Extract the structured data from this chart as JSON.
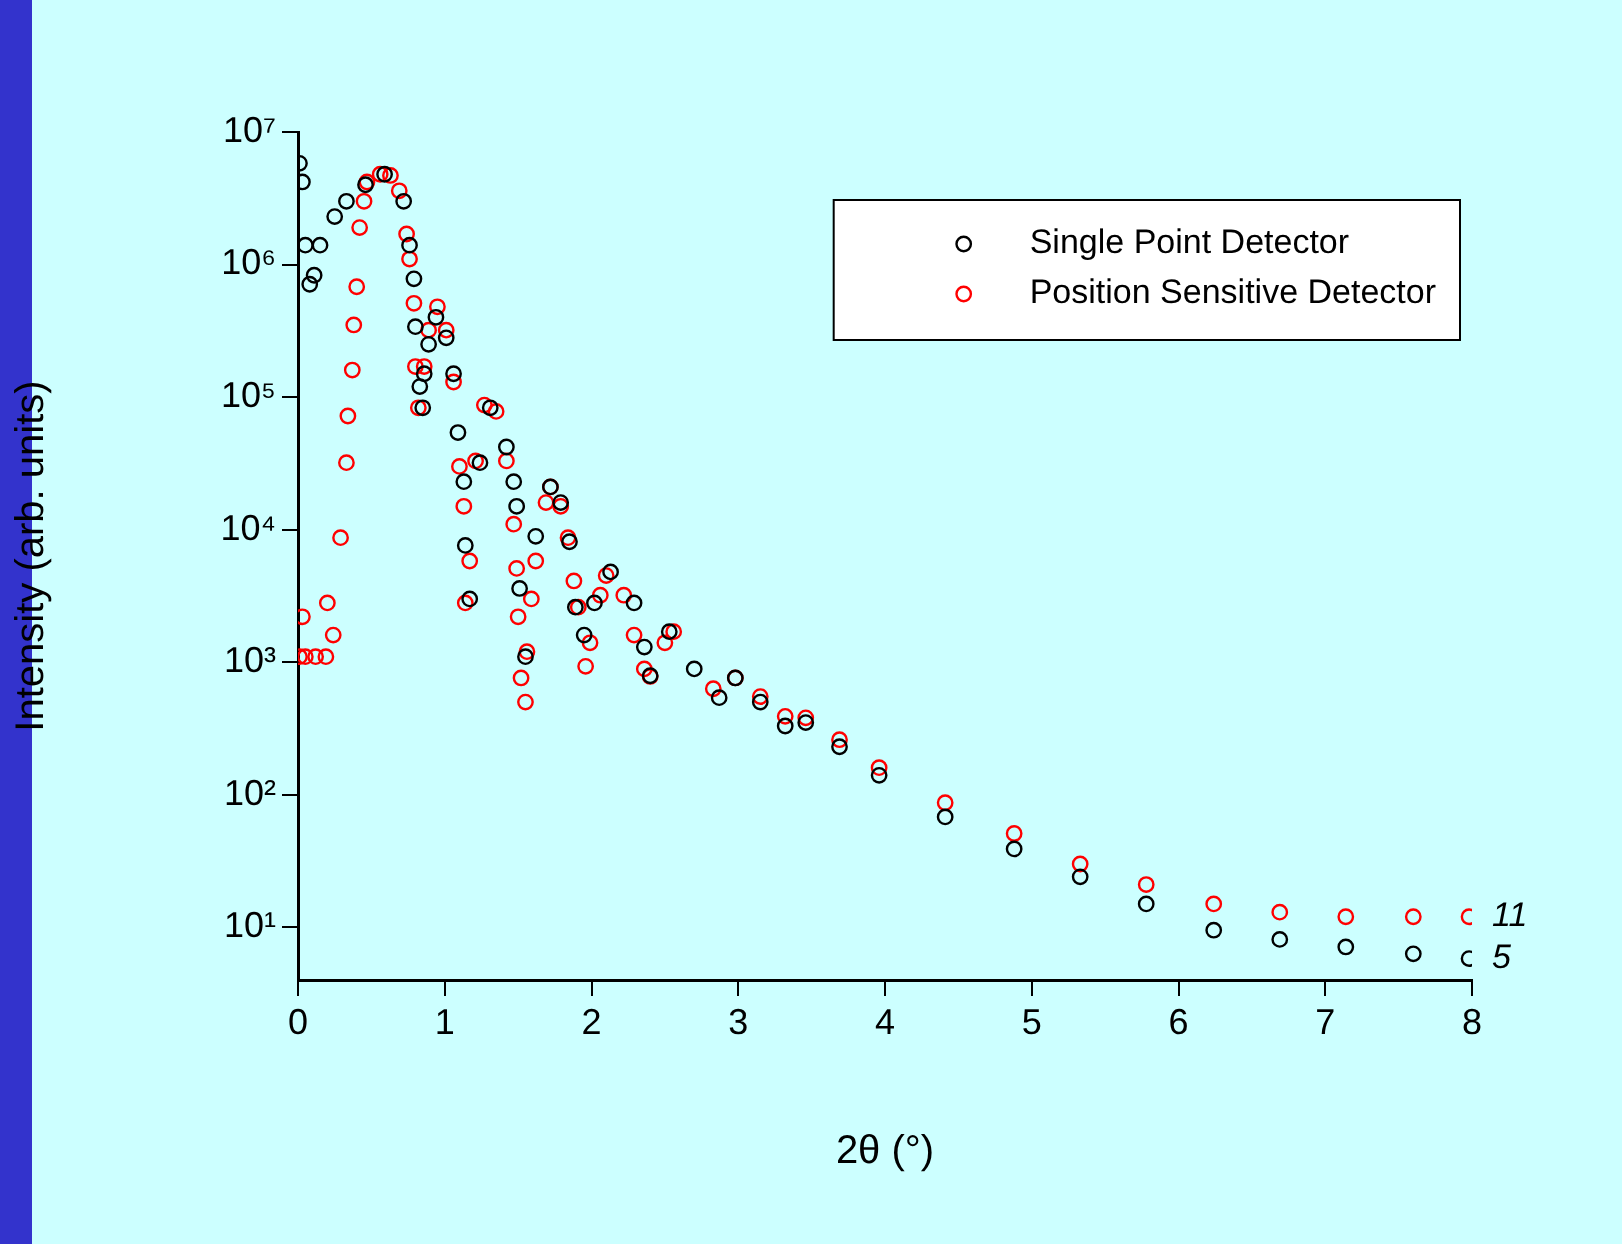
{
  "chart_data": {
    "type": "scatter",
    "xlabel": "2θ (°)",
    "ylabel": "Intensity (arb. units)",
    "log": "y",
    "marker": "circle",
    "grid": false,
    "legend": "top right",
    "xlim": [
      0,
      8
    ],
    "xticks": [
      0,
      1,
      2,
      3,
      4,
      5,
      6,
      7,
      8
    ],
    "ylim": [
      4,
      10000000
    ],
    "yticks": [
      {
        "value": 10,
        "label": "10¹"
      },
      {
        "value": 100,
        "label": "10²"
      },
      {
        "value": 1000,
        "label": "10³"
      },
      {
        "value": 10000,
        "label": "10⁴"
      },
      {
        "value": 100000,
        "label": "10⁵"
      },
      {
        "value": 1000000,
        "label": "10⁶"
      },
      {
        "value": 10000000,
        "label": "10⁷"
      }
    ],
    "annotations": [
      {
        "text": "11",
        "x": 8,
        "y": 12
      },
      {
        "text": "5",
        "x": 8,
        "y": 5.8
      }
    ],
    "series": [
      {
        "name": "Single Point Detector",
        "color": "#000000",
        "x": [
          0.01,
          0.03,
          0.05,
          0.08,
          0.11,
          0.15,
          0.25,
          0.33,
          0.46,
          0.59,
          0.72,
          0.76,
          0.79,
          0.8,
          0.83,
          0.85,
          0.86,
          0.89,
          0.94,
          1.01,
          1.06,
          1.09,
          1.13,
          1.14,
          1.17,
          1.24,
          1.31,
          1.42,
          1.47,
          1.49,
          1.51,
          1.55,
          1.62,
          1.72,
          1.79,
          1.85,
          1.89,
          1.95,
          2.02,
          2.13,
          2.29,
          2.36,
          2.4,
          2.53,
          2.7,
          2.87,
          2.98,
          3.15,
          3.32,
          3.46,
          3.69,
          3.96,
          4.41,
          4.88,
          5.33,
          5.78,
          6.24,
          6.69,
          7.14,
          7.6,
          7.98
        ],
        "values": [
          5800000,
          4200000,
          1400000,
          710000,
          830000,
          1400000,
          2300000,
          3000000,
          4000000,
          4800000,
          3000000,
          1400000,
          780000,
          340000,
          120000,
          83000,
          150000,
          250000,
          400000,
          280000,
          150000,
          54000,
          23000,
          7600,
          3000,
          32000,
          83000,
          42000,
          23000,
          15000,
          3600,
          1100,
          8900,
          21000,
          16000,
          8100,
          2600,
          1600,
          2800,
          4800,
          2800,
          1300,
          790,
          1700,
          890,
          540,
          760,
          500,
          330,
          350,
          230,
          140,
          68,
          39,
          24,
          15,
          9.5,
          8.1,
          7.1,
          6.3,
          5.8
        ]
      },
      {
        "name": "Position Sensitive Detector",
        "color": "#ff0000",
        "x": [
          0.01,
          0.03,
          0.05,
          0.12,
          0.19,
          0.2,
          0.24,
          0.29,
          0.33,
          0.34,
          0.37,
          0.38,
          0.4,
          0.42,
          0.45,
          0.47,
          0.56,
          0.63,
          0.69,
          0.74,
          0.76,
          0.79,
          0.8,
          0.82,
          0.86,
          0.89,
          0.95,
          1.01,
          1.06,
          1.1,
          1.13,
          1.14,
          1.17,
          1.21,
          1.27,
          1.35,
          1.42,
          1.47,
          1.49,
          1.5,
          1.52,
          1.55,
          1.56,
          1.59,
          1.62,
          1.69,
          1.72,
          1.79,
          1.84,
          1.88,
          1.91,
          1.96,
          1.99,
          2.06,
          2.1,
          2.22,
          2.29,
          2.36,
          2.4,
          2.5,
          2.56,
          2.83,
          2.98,
          3.15,
          3.32,
          3.46,
          3.69,
          3.96,
          4.41,
          4.88,
          5.33,
          5.78,
          6.24,
          6.69,
          7.14,
          7.6,
          7.98
        ],
        "values": [
          1100,
          2200,
          1100,
          1100,
          1100,
          2800,
          1600,
          8700,
          32000,
          72000,
          160000,
          350000,
          680000,
          1900000,
          3000000,
          4200000,
          4800000,
          4700000,
          3600000,
          1700000,
          1100000,
          510000,
          170000,
          83000,
          170000,
          320000,
          480000,
          320000,
          130000,
          30000,
          15000,
          2800,
          5800,
          33000,
          87000,
          78000,
          33000,
          11000,
          5100,
          2200,
          760,
          500,
          1200,
          3000,
          5800,
          16000,
          21000,
          15000,
          8700,
          4100,
          2600,
          930,
          1400,
          3200,
          4500,
          3200,
          1600,
          890,
          780,
          1400,
          1700,
          630,
          760,
          550,
          390,
          380,
          260,
          160,
          87,
          51,
          30,
          21,
          15,
          13,
          12,
          12,
          12
        ]
      }
    ]
  }
}
